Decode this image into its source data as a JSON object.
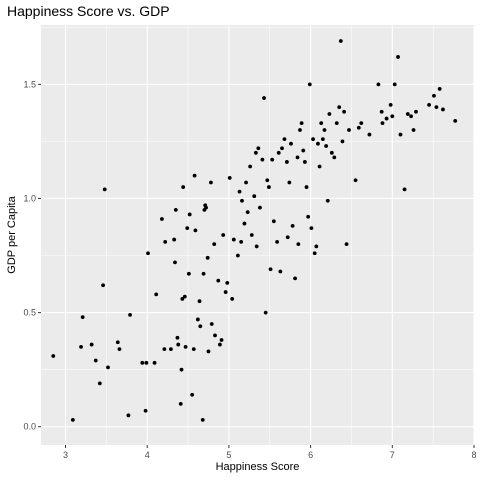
{
  "chart_data": {
    "type": "scatter",
    "title": "Happiness Score vs. GDP",
    "xlabel": "Happiness Score",
    "ylabel": "GDP per Capita",
    "xlim": [
      2.7,
      8.0
    ],
    "ylim": [
      -0.08,
      1.76
    ],
    "xticks": [
      3,
      4,
      5,
      6,
      7,
      8
    ],
    "yticks": [
      0.0,
      0.5,
      1.0,
      1.5
    ],
    "ytick_labels": [
      "0.0",
      "0.5",
      "1.0",
      "1.5"
    ],
    "grid": true,
    "point_color": "#000000",
    "panel_color": "#ebebeb",
    "grid_color": "#ffffff",
    "points": [
      [
        2.85,
        0.31
      ],
      [
        3.09,
        0.03
      ],
      [
        3.19,
        0.35
      ],
      [
        3.21,
        0.48
      ],
      [
        3.32,
        0.36
      ],
      [
        3.37,
        0.29
      ],
      [
        3.42,
        0.19
      ],
      [
        3.46,
        0.62
      ],
      [
        3.48,
        1.04
      ],
      [
        3.52,
        0.26
      ],
      [
        3.64,
        0.37
      ],
      [
        3.66,
        0.34
      ],
      [
        3.77,
        0.05
      ],
      [
        3.79,
        0.49
      ],
      [
        3.94,
        0.28
      ],
      [
        3.98,
        0.07
      ],
      [
        3.99,
        0.28
      ],
      [
        4.01,
        0.76
      ],
      [
        4.09,
        0.28
      ],
      [
        4.11,
        0.58
      ],
      [
        4.18,
        0.91
      ],
      [
        4.21,
        0.34
      ],
      [
        4.22,
        0.81
      ],
      [
        4.29,
        0.34
      ],
      [
        4.33,
        0.82
      ],
      [
        4.34,
        0.72
      ],
      [
        4.35,
        0.95
      ],
      [
        4.37,
        0.39
      ],
      [
        4.38,
        0.36
      ],
      [
        4.41,
        0.1
      ],
      [
        4.42,
        0.25
      ],
      [
        4.43,
        0.56
      ],
      [
        4.44,
        1.05
      ],
      [
        4.46,
        0.57
      ],
      [
        4.47,
        0.35
      ],
      [
        4.49,
        0.87
      ],
      [
        4.51,
        0.67
      ],
      [
        4.52,
        0.93
      ],
      [
        4.55,
        0.14
      ],
      [
        4.57,
        0.34
      ],
      [
        4.58,
        1.1
      ],
      [
        4.59,
        0.86
      ],
      [
        4.62,
        0.47
      ],
      [
        4.64,
        0.55
      ],
      [
        4.65,
        0.44
      ],
      [
        4.68,
        0.03
      ],
      [
        4.69,
        0.67
      ],
      [
        4.7,
        0.95
      ],
      [
        4.71,
        0.97
      ],
      [
        4.72,
        0.96
      ],
      [
        4.74,
        0.74
      ],
      [
        4.75,
        0.33
      ],
      [
        4.78,
        1.07
      ],
      [
        4.79,
        0.45
      ],
      [
        4.82,
        0.8
      ],
      [
        4.83,
        0.4
      ],
      [
        4.87,
        0.64
      ],
      [
        4.89,
        0.36
      ],
      [
        4.91,
        0.38
      ],
      [
        4.93,
        0.84
      ],
      [
        4.96,
        0.59
      ],
      [
        4.98,
        0.63
      ],
      [
        5.01,
        1.09
      ],
      [
        5.04,
        0.56
      ],
      [
        5.06,
        0.82
      ],
      [
        5.11,
        0.75
      ],
      [
        5.13,
        1.03
      ],
      [
        5.15,
        0.81
      ],
      [
        5.16,
        0.99
      ],
      [
        5.19,
        0.89
      ],
      [
        5.21,
        1.07
      ],
      [
        5.23,
        0.94
      ],
      [
        5.26,
        1.14
      ],
      [
        5.28,
        0.84
      ],
      [
        5.31,
        1.01
      ],
      [
        5.33,
        1.2
      ],
      [
        5.34,
        0.79
      ],
      [
        5.36,
        1.22
      ],
      [
        5.38,
        0.96
      ],
      [
        5.41,
        1.17
      ],
      [
        5.43,
        1.44
      ],
      [
        5.45,
        0.5
      ],
      [
        5.47,
        1.08
      ],
      [
        5.49,
        1.05
      ],
      [
        5.51,
        0.69
      ],
      [
        5.53,
        1.17
      ],
      [
        5.55,
        0.9
      ],
      [
        5.59,
        0.81
      ],
      [
        5.61,
        1.2
      ],
      [
        5.63,
        0.68
      ],
      [
        5.65,
        1.22
      ],
      [
        5.68,
        1.26
      ],
      [
        5.71,
        1.16
      ],
      [
        5.72,
        0.83
      ],
      [
        5.74,
        1.07
      ],
      [
        5.76,
        1.24
      ],
      [
        5.78,
        0.88
      ],
      [
        5.81,
        0.65
      ],
      [
        5.84,
        1.18
      ],
      [
        5.85,
        0.8
      ],
      [
        5.87,
        1.3
      ],
      [
        5.89,
        1.33
      ],
      [
        5.91,
        1.21
      ],
      [
        5.93,
        1.16
      ],
      [
        5.95,
        1.05
      ],
      [
        5.97,
        0.92
      ],
      [
        5.99,
        1.5
      ],
      [
        6.01,
        0.87
      ],
      [
        6.03,
        1.26
      ],
      [
        6.05,
        0.76
      ],
      [
        6.07,
        0.79
      ],
      [
        6.09,
        1.24
      ],
      [
        6.11,
        1.14
      ],
      [
        6.13,
        1.33
      ],
      [
        6.15,
        1.26
      ],
      [
        6.17,
        1.3
      ],
      [
        6.19,
        1.23
      ],
      [
        6.21,
        0.99
      ],
      [
        6.23,
        1.37
      ],
      [
        6.26,
        1.2
      ],
      [
        6.29,
        1.18
      ],
      [
        6.32,
        1.33
      ],
      [
        6.35,
        1.4
      ],
      [
        6.37,
        1.69
      ],
      [
        6.39,
        1.25
      ],
      [
        6.41,
        1.38
      ],
      [
        6.44,
        0.8
      ],
      [
        6.47,
        1.3
      ],
      [
        6.55,
        1.08
      ],
      [
        6.59,
        1.31
      ],
      [
        6.72,
        1.28
      ],
      [
        6.83,
        1.5
      ],
      [
        6.87,
        1.38
      ],
      [
        6.93,
        1.35
      ],
      [
        6.98,
        1.41
      ],
      [
        7.03,
        1.5
      ],
      [
        7.07,
        1.62
      ],
      [
        7.1,
        1.28
      ],
      [
        7.15,
        1.04
      ],
      [
        7.19,
        1.37
      ],
      [
        7.23,
        1.36
      ],
      [
        7.26,
        1.3
      ],
      [
        7.29,
        1.38
      ],
      [
        7.45,
        1.41
      ],
      [
        7.51,
        1.45
      ],
      [
        7.54,
        1.4
      ],
      [
        7.58,
        1.48
      ],
      [
        7.62,
        1.39
      ],
      [
        7.77,
        1.34
      ],
      [
        6.62,
        1.33
      ],
      [
        7.0,
        1.36
      ],
      [
        6.88,
        1.33
      ]
    ]
  }
}
